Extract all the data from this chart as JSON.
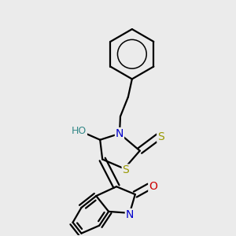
{
  "background_color": "#ebebeb",
  "fig_size": [
    3.0,
    3.0
  ],
  "dpi": 100,
  "atom_colors": {
    "C": "#000000",
    "N": "#0000cc",
    "O": "#cc0000",
    "S": "#999900",
    "H": "#338888"
  },
  "bond_color": "#000000",
  "bond_width": 1.6,
  "font_size_atoms": 10
}
